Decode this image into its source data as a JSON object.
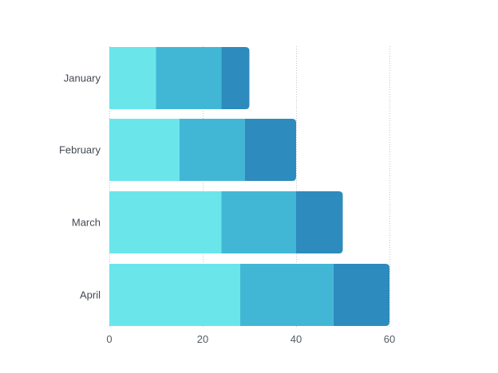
{
  "chart_data": {
    "type": "bar",
    "orientation": "horizontal",
    "stacked": true,
    "title": "",
    "xlabel": "",
    "ylabel": "",
    "categories": [
      "January",
      "February",
      "March",
      "April"
    ],
    "series": [
      {
        "values": [
          10,
          15,
          24,
          28
        ],
        "color": "#6ae6ea"
      },
      {
        "values": [
          14,
          14,
          16,
          20
        ],
        "color": "#42b7d5"
      },
      {
        "values": [
          6,
          11,
          10,
          12
        ],
        "color": "#2d8bbd"
      }
    ],
    "xlim": [
      0,
      60
    ],
    "xticks": [
      0,
      20,
      40,
      60
    ],
    "grid": true,
    "legend": "none"
  }
}
